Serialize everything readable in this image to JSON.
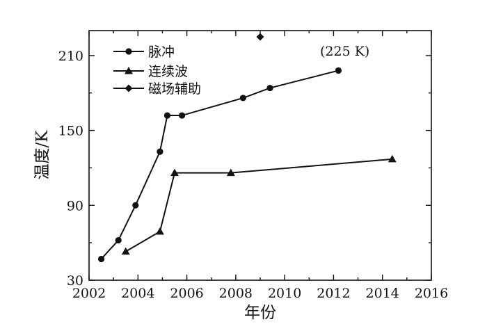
{
  "chart_data": {
    "type": "line",
    "title": "",
    "xlabel": "年份",
    "ylabel": "温度/K",
    "xlim": [
      2002,
      2016
    ],
    "ylim": [
      30,
      230
    ],
    "xticks": [
      2002,
      2004,
      2006,
      2008,
      2010,
      2012,
      2014,
      2016
    ],
    "yticks": [
      30,
      90,
      150,
      210
    ],
    "x_tick_labels": [
      "2002",
      "2004",
      "2006",
      "2008",
      "2010",
      "2012",
      "2014",
      "2016"
    ],
    "y_tick_labels": [
      "30",
      "90",
      "150",
      "210"
    ],
    "legend_position": "top-left",
    "annotation": "(225 K)",
    "series": [
      {
        "name": "脉冲",
        "marker": "circle",
        "x": [
          2002.5,
          2003.2,
          2003.9,
          2004.9,
          2005.2,
          2005.8,
          2008.3,
          2009.4,
          2012.2
        ],
        "values": [
          47,
          62,
          90,
          133,
          162,
          162,
          176,
          184,
          198
        ]
      },
      {
        "name": "连续波",
        "marker": "triangle",
        "x": [
          2003.5,
          2004.9,
          2005.5,
          2007.8,
          2014.4
        ],
        "values": [
          53,
          69,
          116,
          116,
          127
        ]
      },
      {
        "name": "磁场辅助",
        "marker": "diamond",
        "x": [
          2009.0
        ],
        "values": [
          225
        ]
      }
    ]
  }
}
